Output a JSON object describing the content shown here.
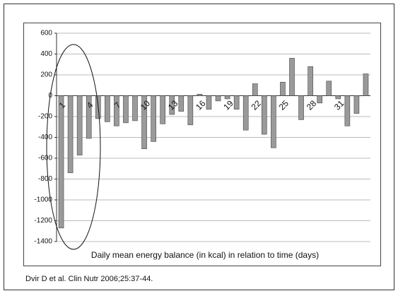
{
  "chart_data": {
    "type": "bar",
    "x_label": "Daily mean energy balance (in kcal) in relation to time (days)",
    "source": "Dvir D et al. Clin Nutr 2006;25:37-44.",
    "categories": [
      "1",
      null,
      null,
      "4",
      null,
      null,
      "7",
      null,
      null,
      "10",
      null,
      null,
      "13",
      null,
      null,
      "16",
      null,
      null,
      "19",
      null,
      null,
      "22",
      null,
      null,
      "25",
      null,
      null,
      "28",
      null,
      null,
      "31",
      null,
      null,
      null
    ],
    "values": [
      -1270,
      -740,
      -570,
      -410,
      -220,
      -250,
      -290,
      -260,
      -240,
      -510,
      -440,
      -270,
      -180,
      -150,
      -280,
      15,
      -130,
      -50,
      -30,
      -130,
      -330,
      115,
      -370,
      -500,
      130,
      360,
      -230,
      280,
      -70,
      140,
      -30,
      -290,
      -170,
      210
    ],
    "color": "#9a9a9a",
    "ylim": [
      -1400,
      600
    ],
    "yticks": [
      -1400,
      -1200,
      -1000,
      -800,
      -600,
      -400,
      -200,
      0,
      200,
      400,
      600
    ],
    "grid": true
  }
}
